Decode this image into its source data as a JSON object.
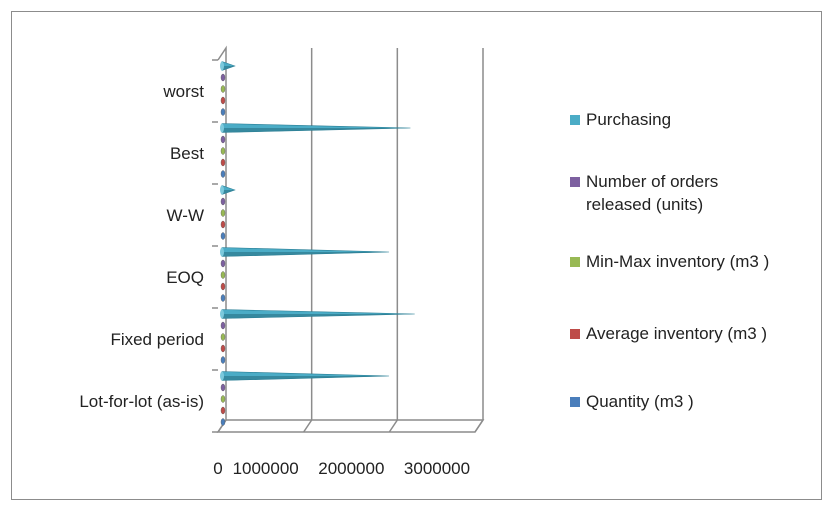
{
  "chart_data": {
    "type": "bar",
    "orientation": "horizontal",
    "style": "3d-cone",
    "categories": [
      "Lot-for-lot (as-is)",
      "Fixed period",
      "EOQ",
      "W-W",
      "Best",
      "worst"
    ],
    "series": [
      {
        "name": "Quantity (m3 )",
        "color": "#4a7ebb",
        "values": [
          0,
          0,
          0,
          0,
          0,
          0
        ]
      },
      {
        "name": "Average inventory (m3 )",
        "color": "#be4b48",
        "values": [
          0,
          0,
          0,
          0,
          0,
          0
        ]
      },
      {
        "name": "Min-Max inventory (m3 )",
        "color": "#98b954",
        "values": [
          0,
          0,
          0,
          0,
          0,
          0
        ]
      },
      {
        "name": "Number of orders released (units)",
        "color": "#7d60a0",
        "values": [
          0,
          0,
          0,
          0,
          0,
          0
        ]
      },
      {
        "name": "Purchasing",
        "color": "#4bacc6",
        "values": [
          1950000,
          2250000,
          1950000,
          150000,
          2200000,
          150000
        ]
      }
    ],
    "x_ticks": [
      "0",
      "1000000",
      "2000000",
      "3000000"
    ],
    "xlim": [
      0,
      3000000
    ],
    "grid": true,
    "legend_position": "right"
  }
}
